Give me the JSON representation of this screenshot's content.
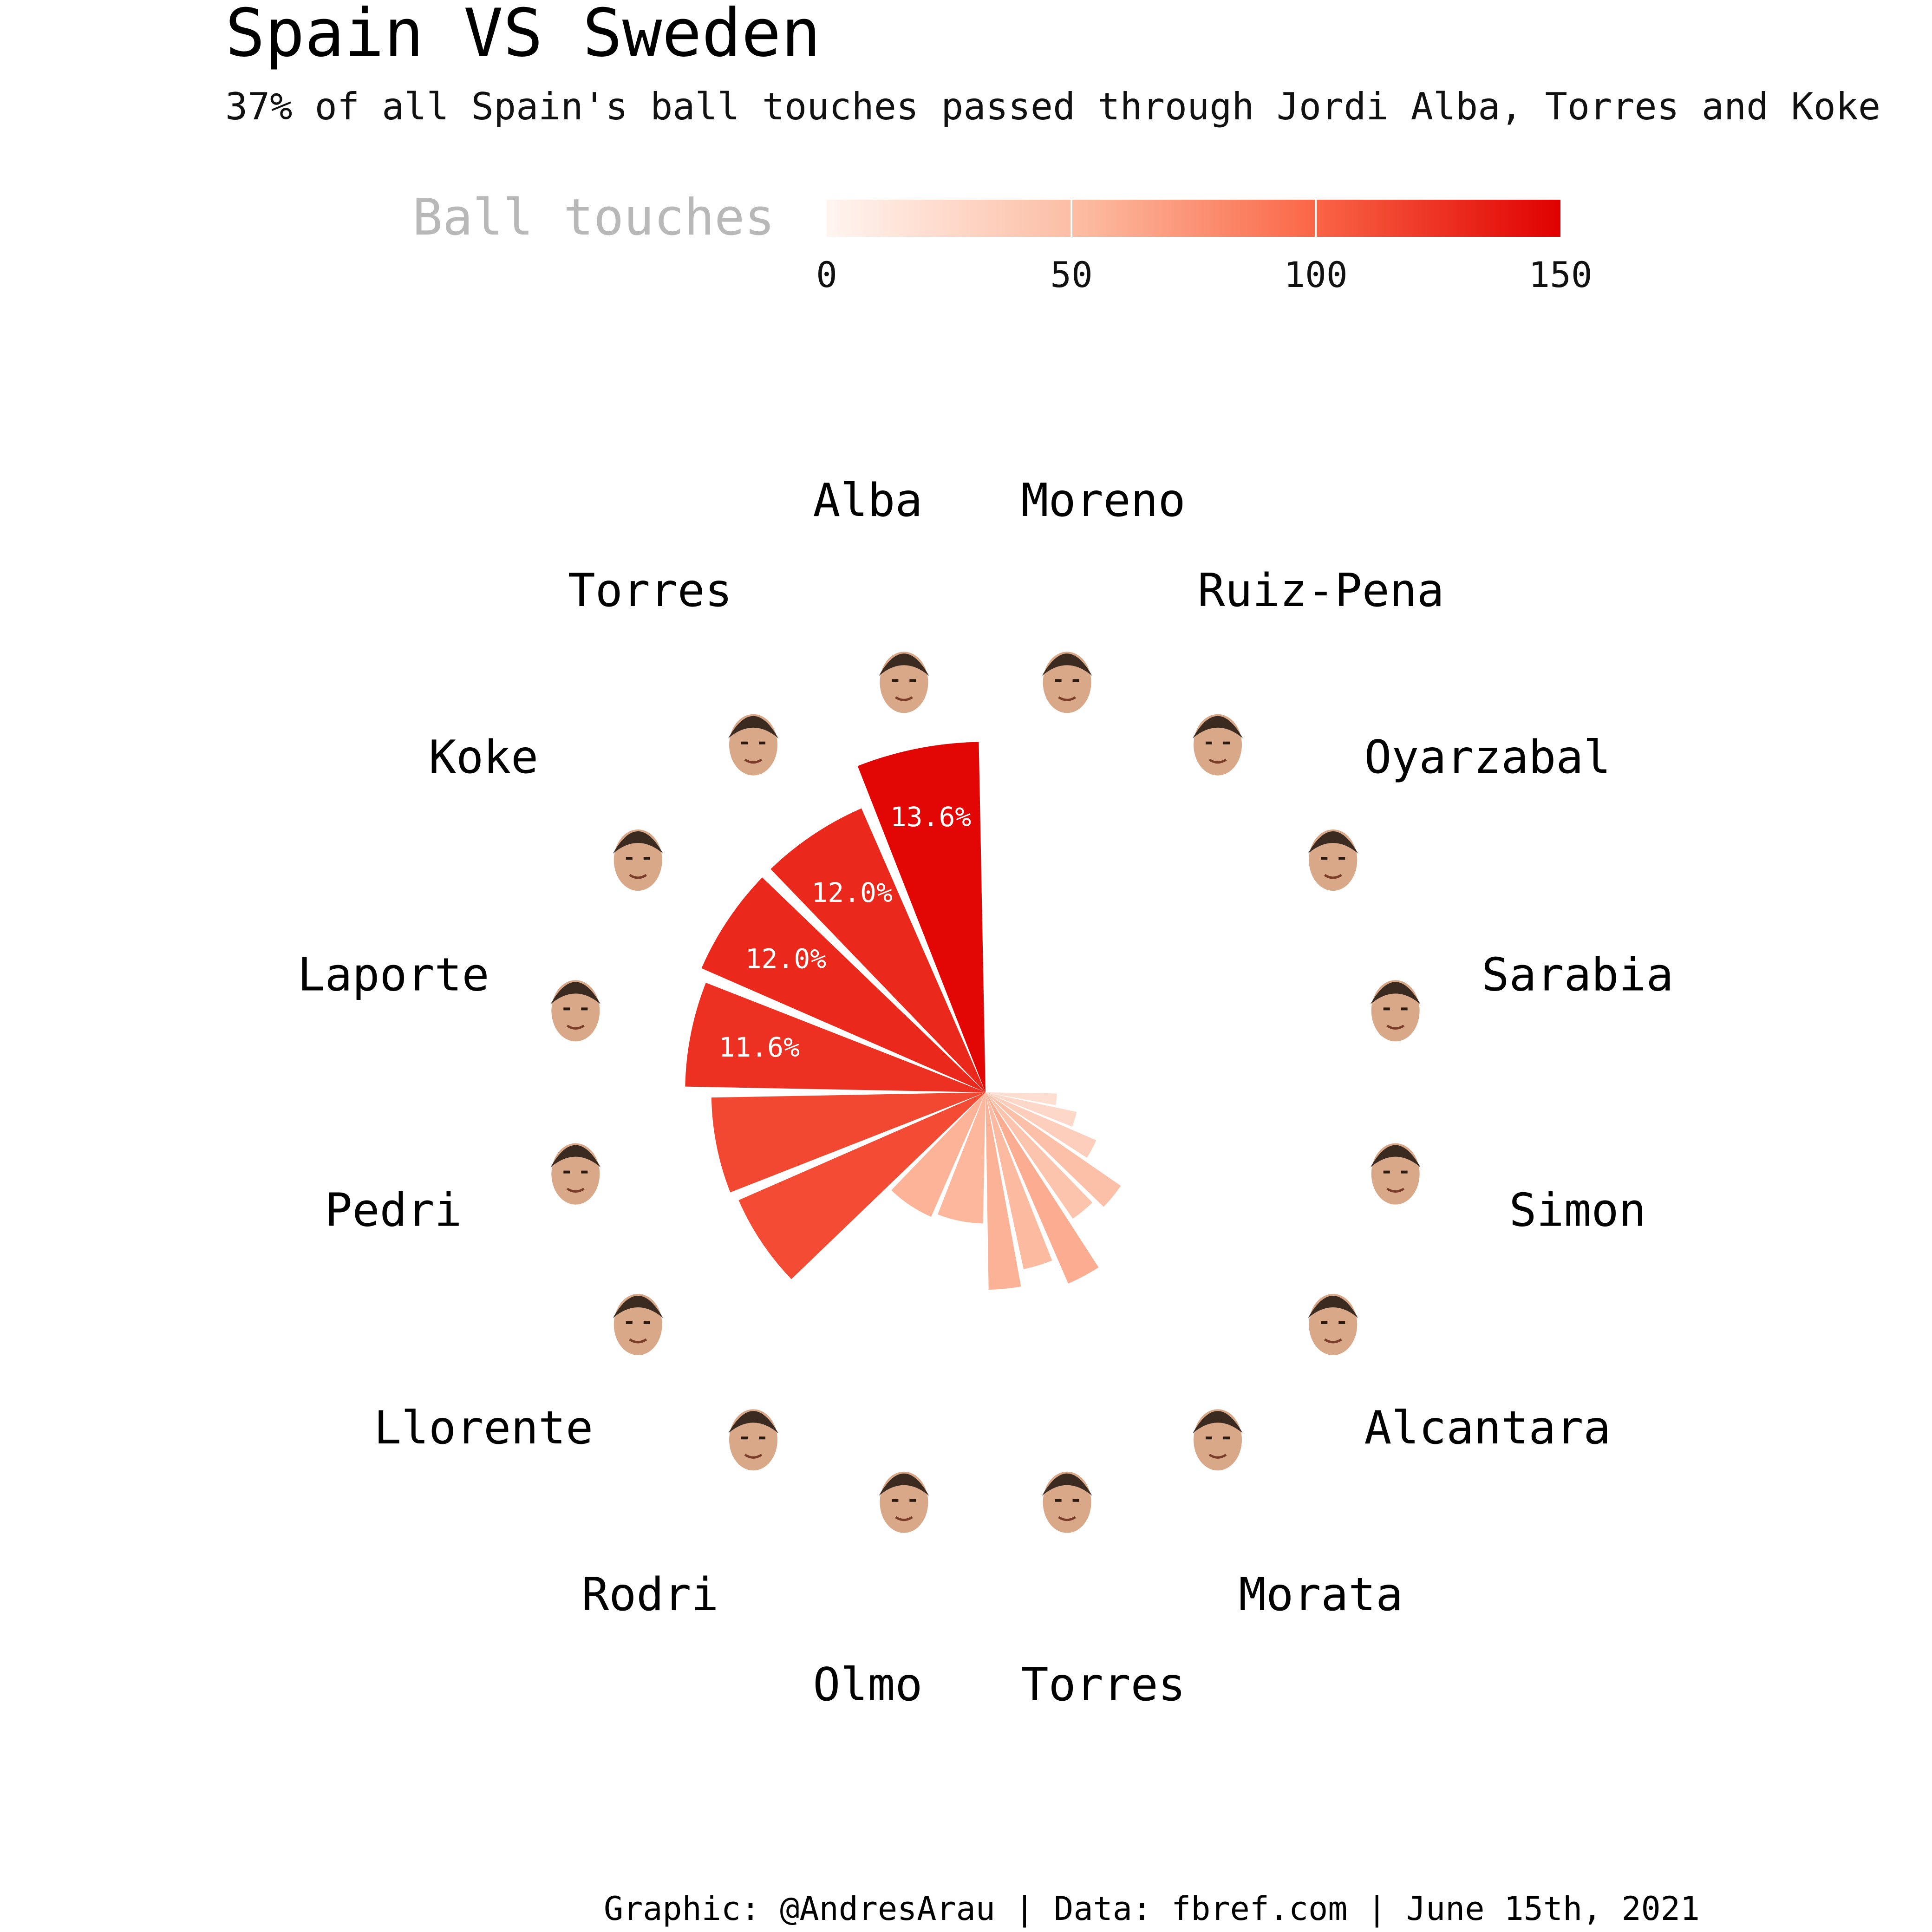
{
  "title": "Spain VS Sweden",
  "subtitle": "37% of all Spain's ball touches passed through Jordi Alba, Torres and Koke",
  "footer": "Graphic: @AndresArau | Data: fbref.com | June 15th, 2021",
  "legend": {
    "title": "Ball touches",
    "ticks": [
      "0",
      "50",
      "100",
      "150"
    ],
    "tick_values": [
      0,
      50,
      100,
      150
    ],
    "color_low": "#fff5f0",
    "color_high": "#e00000"
  },
  "chart_data": {
    "type": "polar-bar",
    "title": "Spain VS Sweden",
    "subtitle": "37% of all Spain's ball touches passed through Jordi Alba, Torres and Koke",
    "value_name": "Ball touches",
    "scale": [
      0,
      150
    ],
    "players": [
      {
        "name": "Alba",
        "touches": 147,
        "share": "13.6%"
      },
      {
        "name": "Torres",
        "touches": 130,
        "share": "12.0%"
      },
      {
        "name": "Koke",
        "touches": 130,
        "share": "12.0%"
      },
      {
        "name": "Laporte",
        "touches": 126,
        "share": "11.6%"
      },
      {
        "name": "Pedri",
        "touches": 115,
        "share": ""
      },
      {
        "name": "Llorente",
        "touches": 113,
        "share": ""
      },
      {
        "name": "Rodri",
        "touches": 57,
        "share": ""
      },
      {
        "name": "Olmo",
        "touches": 55,
        "share": ""
      },
      {
        "name": "Torres",
        "touches": 0,
        "share": ""
      },
      {
        "name": "Morata",
        "touches": 0,
        "share": ""
      },
      {
        "name": "Alcantara",
        "touches": 0,
        "share": ""
      },
      {
        "name": "Simon",
        "touches": 0,
        "share": ""
      },
      {
        "name": "Sarabia",
        "touches": 0,
        "share": ""
      },
      {
        "name": "Oyarzabal",
        "touches": 0,
        "share": ""
      },
      {
        "name": "Ruiz-Pena",
        "touches": 0,
        "share": ""
      },
      {
        "name": "Moreno",
        "touches": 0,
        "share": ""
      }
    ],
    "inner_bars": [
      {
        "touches": 36
      },
      {
        "touches": 33
      },
      {
        "touches": 38
      },
      {
        "touches": 28
      },
      {
        "touches": 30
      },
      {
        "touches": 22
      },
      {
        "touches": 17
      },
      {
        "touches": 13
      }
    ]
  }
}
